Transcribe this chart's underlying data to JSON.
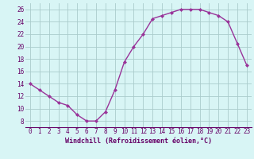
{
  "x": [
    0,
    1,
    2,
    3,
    4,
    5,
    6,
    7,
    8,
    9,
    10,
    11,
    12,
    13,
    14,
    15,
    16,
    17,
    18,
    19,
    20,
    21,
    22,
    23
  ],
  "y": [
    14,
    13,
    12,
    11,
    10.5,
    9,
    8,
    8,
    9.5,
    13,
    17.5,
    20,
    22,
    24.5,
    25,
    25.5,
    26,
    26,
    26,
    25.5,
    25,
    24,
    20.5,
    17
  ],
  "line_color": "#993399",
  "marker": "D",
  "marker_size": 2.0,
  "linewidth": 1.0,
  "bg_color": "#d8f5f5",
  "grid_color": "#aacccc",
  "xlabel": "Windchill (Refroidissement éolien,°C)",
  "xlabel_fontsize": 6,
  "ylabel_ticks": [
    8,
    10,
    12,
    14,
    16,
    18,
    20,
    22,
    24,
    26
  ],
  "xlim": [
    -0.5,
    23.5
  ],
  "ylim": [
    7,
    27
  ],
  "xtick_labels": [
    "0",
    "1",
    "2",
    "3",
    "4",
    "5",
    "6",
    "7",
    "8",
    "9",
    "10",
    "11",
    "12",
    "13",
    "14",
    "15",
    "16",
    "17",
    "18",
    "19",
    "20",
    "21",
    "22",
    "23"
  ],
  "tick_fontsize": 5.5,
  "label_color": "#660066",
  "spine_color": "#660066",
  "bottom_spine_color": "#993399"
}
